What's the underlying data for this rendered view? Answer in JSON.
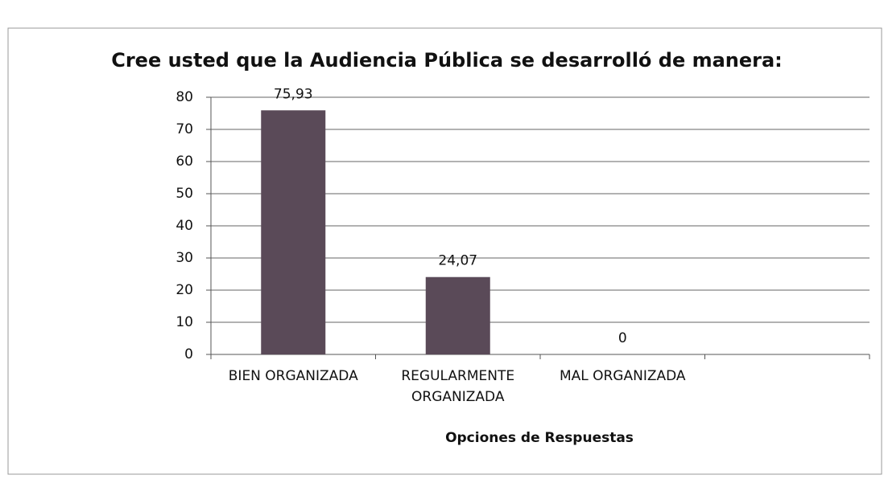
{
  "chart_data": {
    "type": "bar",
    "title": "Cree usted que la Audiencia Pública se desarrolló de manera:",
    "x_label": "Opciones de Respuestas",
    "categories": [
      "BIEN ORGANIZADA",
      "REGULARMENTE ORGANIZADA",
      "MAL ORGANIZADA",
      null
    ],
    "values": [
      75.93,
      24.07,
      0,
      null
    ],
    "value_labels": [
      "75,93",
      "24,07",
      "0",
      null
    ],
    "color": "#5a4a58",
    "ylim": [
      0,
      80
    ],
    "yticks": [
      0,
      10,
      20,
      30,
      40,
      50,
      60,
      70,
      80
    ],
    "grid": true
  }
}
